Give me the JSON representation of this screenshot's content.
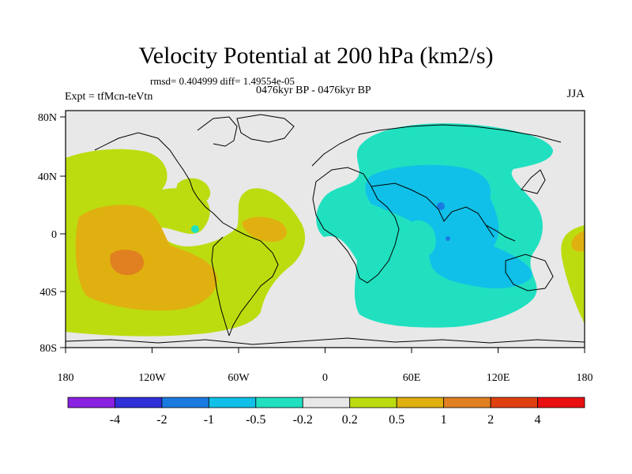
{
  "title": "Velocity Potential at 200 hPa (km2/s)",
  "stats_line": "rmsd= 0.404999 diff= 1.49554e-05",
  "period": "0476kyr BP - 0476kyr BP",
  "experiment": "Expt = tfMcn-teVtn",
  "season": "JJA",
  "map": {
    "lat_ticks": [
      "80N",
      "40N",
      "0",
      "40S",
      "80S"
    ],
    "lon_ticks": [
      "180",
      "120W",
      "60W",
      "0",
      "60E",
      "120E",
      "180"
    ],
    "background_color": "#e8e8e8"
  },
  "colorbar": {
    "colors": [
      "#8a20e0",
      "#3030d8",
      "#1a7ae0",
      "#10c0e8",
      "#20e0c0",
      "#e8e8e8",
      "#bcdc10",
      "#e0b010",
      "#e08020",
      "#e04010",
      "#e81010"
    ],
    "labels": [
      "-4",
      "-2",
      "-1",
      "-0.5",
      "-0.2",
      "0.2",
      "0.5",
      "1",
      "2",
      "4"
    ]
  }
}
